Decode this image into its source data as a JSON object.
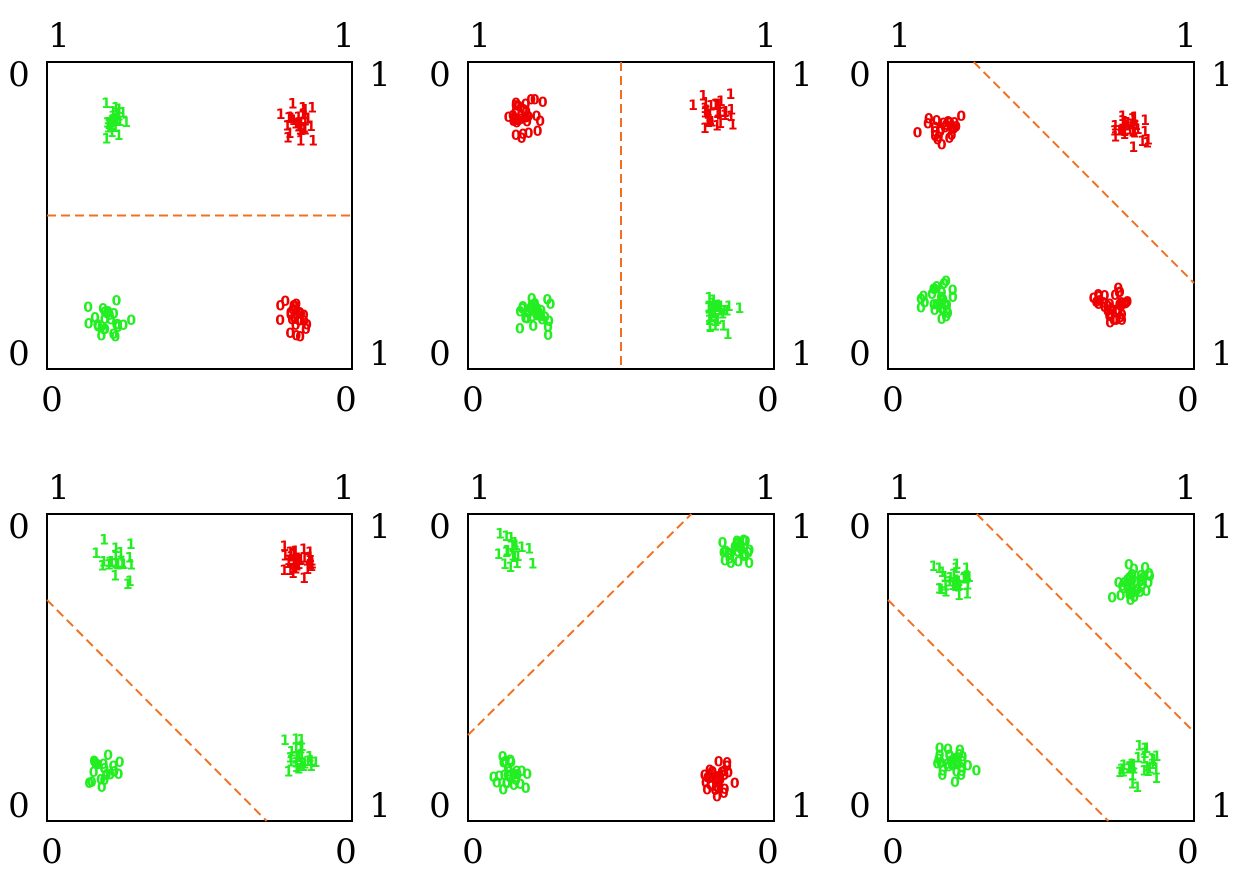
{
  "colors": {
    "red": "#ee0000",
    "green": "#22ee22",
    "boundary": "#f07020",
    "frame": "#000000"
  },
  "chart_data": [
    {
      "type": "scatter",
      "xlim": [
        0,
        1
      ],
      "ylim": [
        0,
        1
      ],
      "corners": {
        "top_left": "1",
        "top_right": "1",
        "left_top": "0",
        "left_bottom": "0",
        "right_top": "1",
        "right_bottom": "1",
        "bottom_left": "0",
        "bottom_right": "0"
      },
      "boundaries": [
        {
          "x": [
            0,
            1
          ],
          "y": [
            0.5,
            0.5
          ]
        }
      ],
      "clusters": [
        {
          "label": "1",
          "color": "green",
          "center": [
            0.22,
            0.8
          ],
          "count": 25
        },
        {
          "label": "1",
          "color": "red",
          "center": [
            0.82,
            0.8
          ],
          "count": 30
        },
        {
          "label": "0",
          "color": "green",
          "center": [
            0.2,
            0.16
          ],
          "count": 25
        },
        {
          "label": "0",
          "color": "red",
          "center": [
            0.82,
            0.15
          ],
          "count": 25
        }
      ]
    },
    {
      "type": "scatter",
      "xlim": [
        0,
        1
      ],
      "ylim": [
        0,
        1
      ],
      "corners": {
        "top_left": "1",
        "top_right": "1",
        "left_top": "0",
        "left_bottom": "0",
        "right_top": "1",
        "right_bottom": "1",
        "bottom_left": "0",
        "bottom_right": "0"
      },
      "boundaries": [
        {
          "x": [
            0.5,
            0.5
          ],
          "y": [
            1,
            0
          ]
        }
      ],
      "clusters": [
        {
          "label": "0",
          "color": "red",
          "center": [
            0.18,
            0.83
          ],
          "count": 30
        },
        {
          "label": "1",
          "color": "red",
          "center": [
            0.8,
            0.84
          ],
          "count": 30
        },
        {
          "label": "0",
          "color": "green",
          "center": [
            0.22,
            0.18
          ],
          "count": 30
        },
        {
          "label": "1",
          "color": "green",
          "center": [
            0.82,
            0.18
          ],
          "count": 30
        }
      ]
    },
    {
      "type": "scatter",
      "xlim": [
        0,
        1
      ],
      "ylim": [
        0,
        1
      ],
      "corners": {
        "top_left": "1",
        "top_right": "1",
        "left_top": "0",
        "left_bottom": "0",
        "right_top": "1",
        "right_bottom": "1",
        "bottom_left": "0",
        "bottom_right": "0"
      },
      "boundaries": [
        {
          "x": [
            0.28,
            1
          ],
          "y": [
            1,
            0.28
          ]
        }
      ],
      "clusters": [
        {
          "label": "0",
          "color": "red",
          "center": [
            0.17,
            0.78
          ],
          "count": 25
        },
        {
          "label": "1",
          "color": "red",
          "center": [
            0.8,
            0.78
          ],
          "count": 30
        },
        {
          "label": "0",
          "color": "green",
          "center": [
            0.16,
            0.22
          ],
          "count": 30
        },
        {
          "label": "0",
          "color": "red",
          "center": [
            0.74,
            0.2
          ],
          "count": 35
        }
      ]
    },
    {
      "type": "scatter",
      "xlim": [
        0,
        1
      ],
      "ylim": [
        0,
        1
      ],
      "corners": {
        "top_left": "1",
        "top_right": "1",
        "left_top": "0",
        "left_bottom": "0",
        "right_top": "1",
        "right_bottom": "1",
        "bottom_left": "0",
        "bottom_right": "0"
      },
      "boundaries": [
        {
          "x": [
            0,
            0.72
          ],
          "y": [
            0.72,
            0
          ]
        }
      ],
      "clusters": [
        {
          "label": "1",
          "color": "green",
          "center": [
            0.23,
            0.84
          ],
          "count": 20
        },
        {
          "label": "1",
          "color": "red",
          "center": [
            0.82,
            0.84
          ],
          "count": 35
        },
        {
          "label": "0",
          "color": "green",
          "center": [
            0.18,
            0.15
          ],
          "count": 20
        },
        {
          "label": "1",
          "color": "green",
          "center": [
            0.82,
            0.2
          ],
          "count": 25
        }
      ]
    },
    {
      "type": "scatter",
      "xlim": [
        0,
        1
      ],
      "ylim": [
        0,
        1
      ],
      "corners": {
        "top_left": "1",
        "top_right": "1",
        "left_top": "0",
        "left_bottom": "0",
        "right_top": "1",
        "right_bottom": "1",
        "bottom_left": "0",
        "bottom_right": "0"
      },
      "boundaries": [
        {
          "x": [
            0,
            0.73
          ],
          "y": [
            0.28,
            1
          ]
        }
      ],
      "clusters": [
        {
          "label": "1",
          "color": "green",
          "center": [
            0.14,
            0.87
          ],
          "count": 20
        },
        {
          "label": "0",
          "color": "green",
          "center": [
            0.88,
            0.88
          ],
          "count": 25
        },
        {
          "label": "0",
          "color": "green",
          "center": [
            0.14,
            0.15
          ],
          "count": 25
        },
        {
          "label": "0",
          "color": "red",
          "center": [
            0.82,
            0.13
          ],
          "count": 30
        }
      ]
    },
    {
      "type": "scatter",
      "xlim": [
        0,
        1
      ],
      "ylim": [
        0,
        1
      ],
      "corners": {
        "top_left": "1",
        "top_right": "1",
        "left_top": "0",
        "left_bottom": "0",
        "right_top": "1",
        "right_bottom": "1",
        "bottom_left": "0",
        "bottom_right": "0"
      },
      "boundaries": [
        {
          "x": [
            0,
            0.72
          ],
          "y": [
            0.72,
            0
          ]
        },
        {
          "x": [
            0.29,
            1
          ],
          "y": [
            1,
            0.29
          ]
        }
      ],
      "clusters": [
        {
          "label": "1",
          "color": "green",
          "center": [
            0.22,
            0.78
          ],
          "count": 30
        },
        {
          "label": "0",
          "color": "green",
          "center": [
            0.8,
            0.76
          ],
          "count": 35
        },
        {
          "label": "0",
          "color": "green",
          "center": [
            0.22,
            0.19
          ],
          "count": 35
        },
        {
          "label": "1",
          "color": "green",
          "center": [
            0.82,
            0.18
          ],
          "count": 30
        }
      ]
    }
  ]
}
